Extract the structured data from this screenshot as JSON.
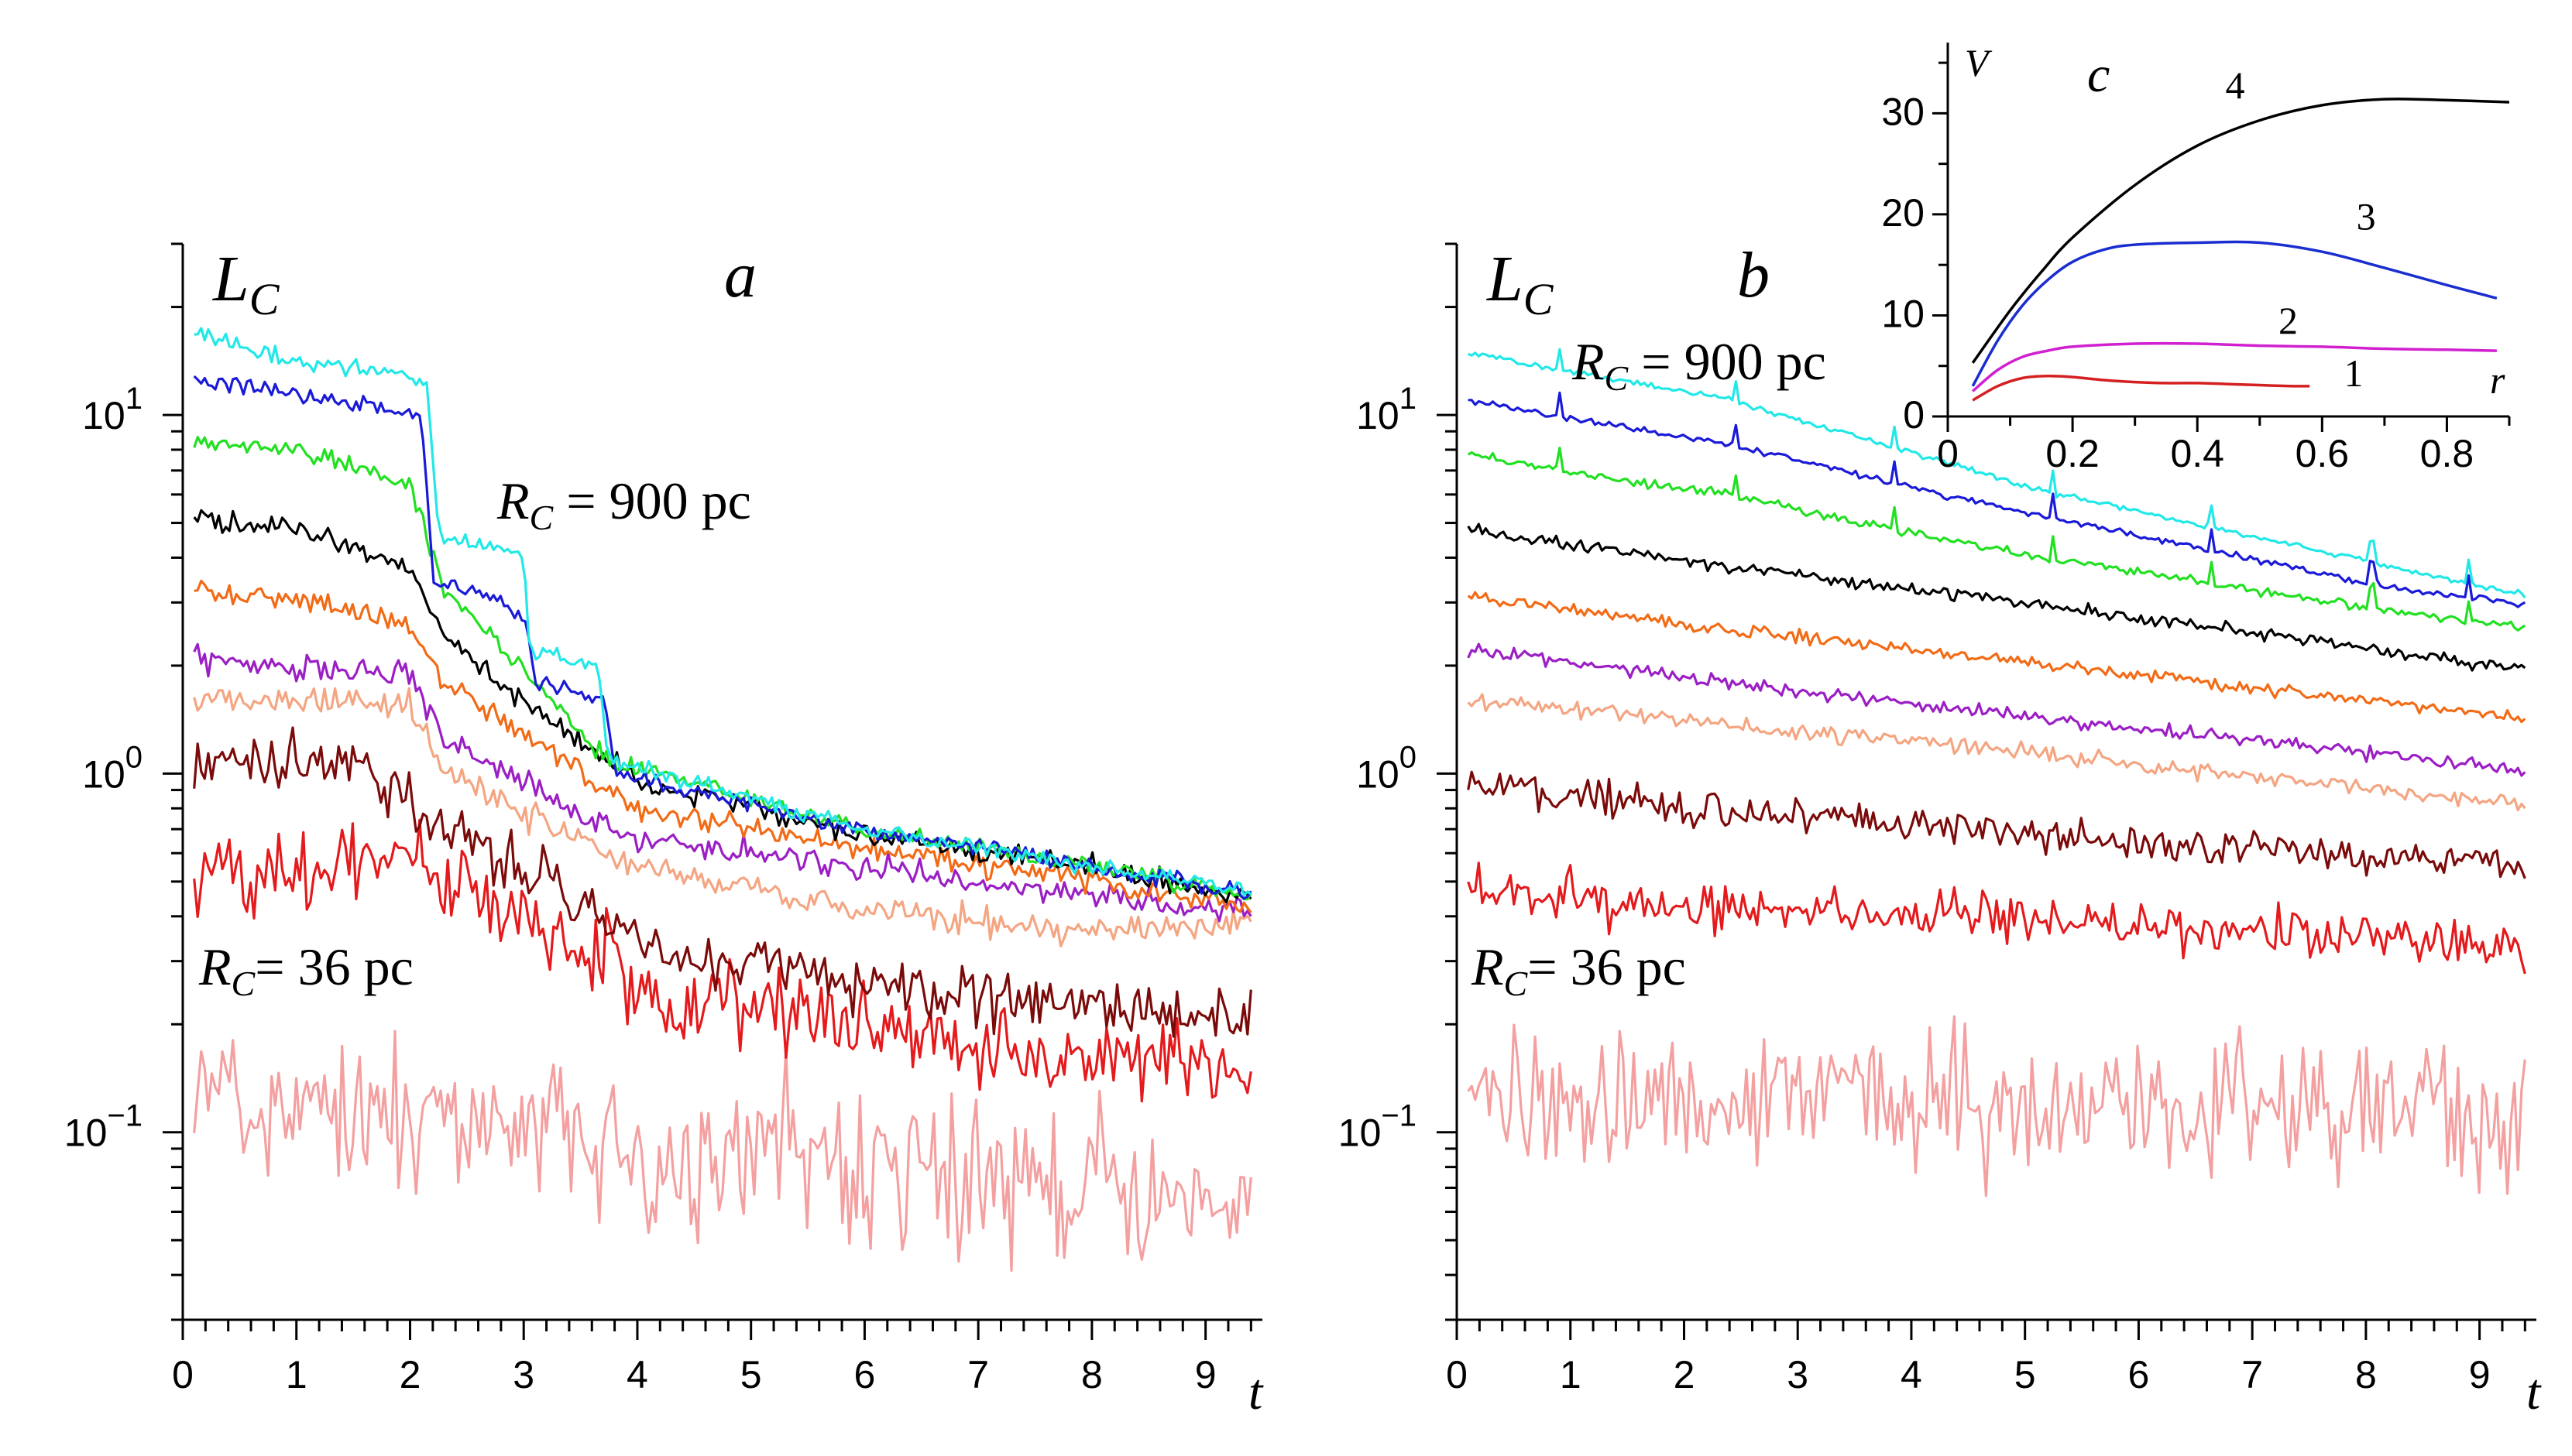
{
  "figure": {
    "panels": [
      "a",
      "b",
      "c"
    ]
  },
  "series_colors": [
    "#f4a0a0",
    "#e41a1c",
    "#7b0a0a",
    "#f4a582",
    "#9b1fc4",
    "#f26b16",
    "#000000",
    "#22e022",
    "#1a1ad8",
    "#22e8e8"
  ],
  "chart_data": [
    {
      "type": "line",
      "panel": "a",
      "panel_label": "a",
      "ylabel": "L",
      "ylabel_sub": "C",
      "xlabel": "t",
      "yscale": "log",
      "xlim": [
        0,
        9.5
      ],
      "ylim": [
        0.03,
        30
      ],
      "xticks": [
        "0",
        "1",
        "2",
        "3",
        "4",
        "5",
        "6",
        "7",
        "8",
        "9"
      ],
      "yticks": [
        {
          "base": "10",
          "exp": "1",
          "value": 10
        },
        {
          "base": "10",
          "exp": "0",
          "value": 1
        },
        {
          "base": "10",
          "exp": "−1",
          "value": 0.1
        }
      ],
      "annotations": [
        {
          "main": "R",
          "sub": "C",
          "rest": " = 900 pc"
        },
        {
          "main": "R",
          "sub": "C",
          "rest": "= 36 pc"
        }
      ],
      "series": [
        {
          "name": "R_C = 36 pc",
          "knots": [
            [
              0.1,
              0.13
            ],
            [
              2,
              0.11
            ],
            [
              4,
              0.09
            ],
            [
              6,
              0.08
            ],
            [
              8,
              0.07
            ],
            [
              9.4,
              0.06
            ]
          ],
          "noise": 0.32,
          "jumps": []
        },
        {
          "name": "series 2",
          "knots": [
            [
              0.1,
              0.55
            ],
            [
              1.2,
              0.55
            ],
            [
              2,
              0.58
            ],
            [
              2.2,
              0.5
            ],
            [
              3,
              0.42
            ],
            [
              4,
              0.25
            ],
            [
              6,
              0.2
            ],
            [
              8,
              0.16
            ],
            [
              9.4,
              0.16
            ]
          ],
          "noise": 0.17,
          "jumps": []
        },
        {
          "name": "series 3",
          "knots": [
            [
              0.1,
              1.1
            ],
            [
              0.8,
              1.05
            ],
            [
              1.5,
              1.1
            ],
            [
              2.2,
              0.72
            ],
            [
              3,
              0.55
            ],
            [
              4,
              0.34
            ],
            [
              6,
              0.26
            ],
            [
              8,
              0.22
            ],
            [
              9.4,
              0.21
            ]
          ],
          "noise": 0.12,
          "jumps": []
        },
        {
          "name": "series 4",
          "knots": [
            [
              0.1,
              1.6
            ],
            [
              1,
              1.6
            ],
            [
              2,
              1.55
            ],
            [
              2.3,
              1.0
            ],
            [
              3,
              0.78
            ],
            [
              4,
              0.55
            ],
            [
              6,
              0.42
            ],
            [
              8,
              0.36
            ],
            [
              9.4,
              0.38
            ]
          ],
          "noise": 0.06,
          "jumps": []
        },
        {
          "name": "series 5",
          "knots": [
            [
              0.1,
              2.1
            ],
            [
              1,
              2.0
            ],
            [
              2,
              1.9
            ],
            [
              2.3,
              1.25
            ],
            [
              3,
              0.95
            ],
            [
              4,
              0.65
            ],
            [
              6,
              0.55
            ],
            [
              8,
              0.45
            ],
            [
              9.4,
              0.42
            ]
          ],
          "noise": 0.055,
          "jumps": []
        },
        {
          "name": "series 6",
          "knots": [
            [
              0.1,
              3.3
            ],
            [
              1,
              3.0
            ],
            [
              2,
              2.6
            ],
            [
              2.3,
              1.8
            ],
            [
              3,
              1.3
            ],
            [
              4,
              0.8
            ],
            [
              6,
              0.62
            ],
            [
              8,
              0.5
            ],
            [
              9.4,
              0.42
            ]
          ],
          "noise": 0.05,
          "jumps": []
        },
        {
          "name": "series 7",
          "knots": [
            [
              0.1,
              5.2
            ],
            [
              1,
              4.8
            ],
            [
              2,
              3.8
            ],
            [
              2.3,
              2.4
            ],
            [
              3,
              1.6
            ],
            [
              4,
              0.95
            ],
            [
              6,
              0.68
            ],
            [
              8,
              0.55
            ],
            [
              9.4,
              0.45
            ]
          ],
          "noise": 0.045,
          "jumps": []
        },
        {
          "name": "series 8",
          "knots": [
            [
              0.1,
              8.5
            ],
            [
              1,
              8.0
            ],
            [
              2,
              6.5
            ],
            [
              2.3,
              3.2
            ],
            [
              3,
              2.0
            ],
            [
              3.7,
              1.1
            ],
            [
              6,
              0.7
            ],
            [
              8,
              0.55
            ],
            [
              9.4,
              0.46
            ]
          ],
          "noise": 0.04,
          "jumps": []
        },
        {
          "name": "series 9",
          "knots": [
            [
              0.1,
              12.5
            ],
            [
              1,
              11.5
            ],
            [
              2.1,
              10
            ],
            [
              2.2,
              3.5
            ],
            [
              3,
              2.8
            ],
            [
              3.1,
              1.8
            ],
            [
              3.7,
              1.6
            ],
            [
              3.8,
              1.0
            ],
            [
              6,
              0.7
            ],
            [
              8,
              0.55
            ],
            [
              9.4,
              0.46
            ]
          ],
          "noise": 0.035,
          "jumps": []
        },
        {
          "name": "R_C = 900 pc",
          "knots": [
            [
              0.1,
              17
            ],
            [
              1,
              14
            ],
            [
              2,
              13
            ],
            [
              2.15,
              12
            ],
            [
              2.25,
              4.6
            ],
            [
              3,
              4.2
            ],
            [
              3.05,
              2.2
            ],
            [
              3.65,
              2.0
            ],
            [
              3.75,
              1.1
            ],
            [
              6,
              0.7
            ],
            [
              8,
              0.55
            ],
            [
              9.4,
              0.47
            ]
          ],
          "noise": 0.035,
          "jumps": []
        }
      ]
    },
    {
      "type": "line",
      "panel": "b",
      "panel_label": "b",
      "ylabel": "L",
      "ylabel_sub": "C",
      "xlabel": "t",
      "yscale": "log",
      "xlim": [
        0,
        9.5
      ],
      "ylim": [
        0.03,
        30
      ],
      "xticks": [
        "0",
        "1",
        "2",
        "3",
        "4",
        "5",
        "6",
        "7",
        "8",
        "9"
      ],
      "yticks": [
        {
          "base": "10",
          "exp": "1",
          "value": 10
        },
        {
          "base": "10",
          "exp": "0",
          "value": 1
        },
        {
          "base": "10",
          "exp": "−1",
          "value": 0.1
        }
      ],
      "annotations": [
        {
          "main": "R",
          "sub": "C",
          "rest": " = 900 pc"
        },
        {
          "main": "R",
          "sub": "C",
          "rest": "= 36 pc"
        }
      ],
      "series": [
        {
          "name": "R_C = 36 pc",
          "knots": [
            [
              0.1,
              0.13
            ],
            [
              9.4,
              0.11
            ]
          ],
          "noise": 0.3,
          "jumps": []
        },
        {
          "name": "series 2",
          "knots": [
            [
              0.1,
              0.48
            ],
            [
              2,
              0.42
            ],
            [
              5,
              0.4
            ],
            [
              9.4,
              0.32
            ]
          ],
          "noise": 0.1,
          "jumps": []
        },
        {
          "name": "series 3",
          "knots": [
            [
              0.1,
              0.95
            ],
            [
              2,
              0.8
            ],
            [
              5,
              0.68
            ],
            [
              9.4,
              0.55
            ]
          ],
          "noise": 0.07,
          "jumps": []
        },
        {
          "name": "series 4",
          "knots": [
            [
              0.1,
              1.6
            ],
            [
              2,
              1.4
            ],
            [
              5,
              1.15
            ],
            [
              9.4,
              0.82
            ]
          ],
          "noise": 0.035,
          "jumps": []
        },
        {
          "name": "series 5",
          "knots": [
            [
              0.1,
              2.2
            ],
            [
              2,
              1.85
            ],
            [
              5,
              1.45
            ],
            [
              9.4,
              1.02
            ]
          ],
          "noise": 0.03,
          "jumps": []
        },
        {
          "name": "series 6",
          "knots": [
            [
              0.1,
              3.1
            ],
            [
              2,
              2.6
            ],
            [
              5,
              2.05
            ],
            [
              9.4,
              1.42
            ]
          ],
          "noise": 0.025,
          "jumps": []
        },
        {
          "name": "series 7",
          "knots": [
            [
              0.1,
              4.8
            ],
            [
              2,
              3.9
            ],
            [
              5,
              3.0
            ],
            [
              9.4,
              1.95
            ]
          ],
          "noise": 0.025,
          "jumps": []
        },
        {
          "name": "series 8",
          "knots": [
            [
              0.1,
              7.8
            ],
            [
              0.85,
              7.0
            ],
            [
              2.4,
              6.0
            ],
            [
              3.8,
              4.8
            ],
            [
              5.2,
              4.0
            ],
            [
              6.6,
              3.4
            ],
            [
              8,
              2.9
            ],
            [
              9.4,
              2.55
            ]
          ],
          "noise": 0.018,
          "jumps": [
            0.9,
            2.45,
            3.85,
            5.25,
            6.65,
            8.05,
            8.9
          ]
        },
        {
          "name": "series 9",
          "knots": [
            [
              0.1,
              11
            ],
            [
              0.85,
              10
            ],
            [
              2.4,
              8.3
            ],
            [
              3.8,
              6.5
            ],
            [
              5.2,
              5.2
            ],
            [
              6.6,
              4.2
            ],
            [
              8,
              3.4
            ],
            [
              9.4,
              2.95
            ]
          ],
          "noise": 0.015,
          "jumps": [
            0.9,
            2.45,
            3.85,
            5.25,
            6.65,
            8.05,
            8.9
          ]
        },
        {
          "name": "R_C = 900 pc",
          "knots": [
            [
              0.1,
              15
            ],
            [
              0.85,
              13.5
            ],
            [
              2.4,
              11
            ],
            [
              3.8,
              8.2
            ],
            [
              5.2,
              6.1
            ],
            [
              6.6,
              4.9
            ],
            [
              8,
              3.9
            ],
            [
              9.4,
              3.15
            ]
          ],
          "noise": 0.012,
          "jumps": [
            0.9,
            2.45,
            3.85,
            5.25,
            6.65,
            8.05,
            8.9
          ]
        }
      ]
    },
    {
      "type": "line",
      "panel": "c",
      "panel_label": "c",
      "title": "",
      "xlabel": "r",
      "ylabel": "V",
      "xlim": [
        0,
        0.9
      ],
      "ylim": [
        0,
        37
      ],
      "xticks": [
        "0",
        "0.2",
        "0.4",
        "0.6",
        "0.8"
      ],
      "yticks": [
        "0",
        "10",
        "20",
        "30"
      ],
      "series": [
        {
          "name": "1",
          "color": "#d42020",
          "x": [
            0.04,
            0.08,
            0.12,
            0.16,
            0.2,
            0.25,
            0.3,
            0.35,
            0.4,
            0.45,
            0.5,
            0.55,
            0.58
          ],
          "values": [
            1.6,
            3.0,
            3.8,
            4.0,
            3.9,
            3.6,
            3.4,
            3.3,
            3.3,
            3.2,
            3.1,
            3.0,
            3.0
          ]
        },
        {
          "name": "2",
          "color": "#d020d0",
          "x": [
            0.04,
            0.08,
            0.12,
            0.16,
            0.2,
            0.3,
            0.4,
            0.5,
            0.6,
            0.7,
            0.8,
            0.88
          ],
          "values": [
            2.5,
            4.6,
            5.9,
            6.5,
            6.9,
            7.2,
            7.2,
            7.0,
            6.9,
            6.7,
            6.6,
            6.5
          ]
        },
        {
          "name": "3",
          "color": "#1a2ed0",
          "x": [
            0.04,
            0.08,
            0.12,
            0.16,
            0.2,
            0.25,
            0.3,
            0.4,
            0.5,
            0.6,
            0.7,
            0.8,
            0.88
          ],
          "values": [
            3.0,
            7.5,
            11,
            13.5,
            15.3,
            16.5,
            17.0,
            17.2,
            17.2,
            16.3,
            14.7,
            13.0,
            11.7
          ]
        },
        {
          "name": "4",
          "color": "#000000",
          "x": [
            0.04,
            0.1,
            0.15,
            0.2,
            0.3,
            0.4,
            0.5,
            0.6,
            0.7,
            0.8,
            0.9
          ],
          "values": [
            5.3,
            10.5,
            14.3,
            17.7,
            22.9,
            26.8,
            29.3,
            30.8,
            31.4,
            31.3,
            31.1
          ]
        }
      ]
    }
  ]
}
